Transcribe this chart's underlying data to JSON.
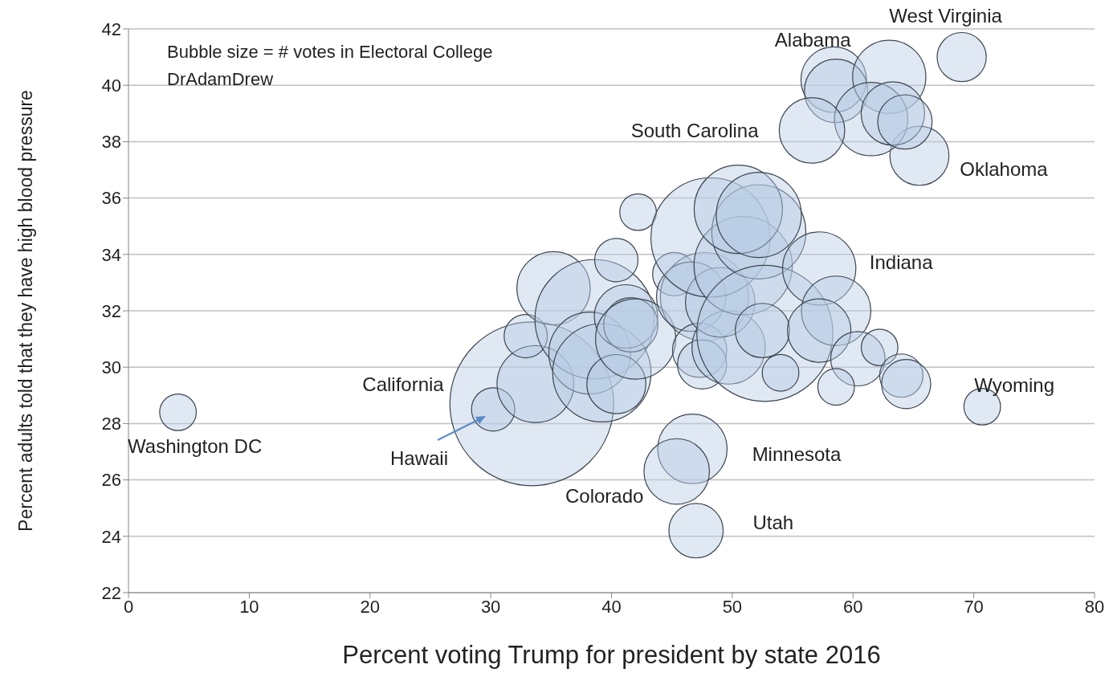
{
  "chart_data": {
    "type": "bubble",
    "xlabel": "Percent voting Trump for president by state  2016",
    "ylabel": "Percent adults told that they have high blood pressure",
    "x": [
      4.1,
      33.4,
      30.2,
      33.7,
      32.9,
      35.2,
      38.6,
      38.2,
      39.2,
      40.4,
      42.2,
      40.4,
      41.2,
      41.6,
      42.0,
      45.2,
      47.7,
      46.6,
      47.3,
      47.5,
      49.7,
      49.0,
      48.2,
      50.9,
      52.2,
      50.5,
      52.2,
      52.7,
      52.5,
      54.0,
      57.2,
      58.6,
      57.2,
      60.4,
      62.2,
      64.0,
      64.4,
      58.6,
      70.7,
      46.7,
      45.4,
      47.0,
      69.0,
      65.5,
      58.4,
      58.6,
      63.0,
      61.5,
      63.3,
      64.3,
      56.6
    ],
    "values": [
      28.4,
      28.7,
      28.5,
      29.4,
      31.1,
      32.8,
      31.7,
      30.5,
      29.8,
      29.4,
      35.5,
      33.8,
      31.8,
      31.5,
      31.0,
      33.3,
      32.5,
      32.5,
      30.6,
      30.1,
      30.7,
      32.3,
      34.6,
      33.6,
      34.8,
      35.6,
      35.4,
      31.2,
      31.3,
      29.8,
      33.5,
      32.0,
      31.3,
      30.3,
      30.7,
      29.7,
      29.4,
      29.3,
      28.6,
      27.1,
      26.3,
      24.2,
      41.0,
      37.5,
      40.2,
      39.8,
      40.3,
      38.8,
      39.0,
      38.7,
      38.4
    ],
    "sizes": [
      0.05,
      1,
      0.07,
      0.22,
      0.07,
      0.2,
      0.53,
      0.25,
      0.36,
      0.13,
      0.05,
      0.07,
      0.15,
      0.11,
      0.24,
      0.07,
      0.29,
      0.18,
      0.11,
      0.09,
      0.2,
      0.18,
      0.53,
      0.36,
      0.33,
      0.29,
      0.27,
      0.69,
      0.11,
      0.05,
      0.2,
      0.18,
      0.15,
      0.11,
      0.05,
      0.07,
      0.09,
      0.05,
      0.05,
      0.18,
      0.16,
      0.11,
      0.09,
      0.13,
      0.16,
      0.15,
      0.2,
      0.2,
      0.15,
      0.11,
      0.16
    ],
    "color": "#b8cce4",
    "xlim": [
      0,
      80
    ],
    "xticks": [
      0,
      10,
      20,
      30,
      40,
      50,
      60,
      70,
      80
    ],
    "ylim": [
      22,
      42
    ],
    "yticks": [
      22,
      24,
      26,
      28,
      30,
      32,
      34,
      36,
      38,
      40,
      42
    ],
    "grid": "y",
    "annotations": [
      "Bubble size = # votes in Electoral College",
      "DrAdamDrew",
      {
        "text": "West Virginia",
        "x": 69.0,
        "y": 41.0
      },
      {
        "text": "Alabama",
        "x": 58.4,
        "y": 40.2
      },
      {
        "text": "South Carolina",
        "x": 56.6,
        "y": 38.4
      },
      {
        "text": "Oklahoma",
        "x": 65.5,
        "y": 37.5
      },
      {
        "text": "Indiana",
        "x": 57.2,
        "y": 33.5
      },
      {
        "text": "Wyoming",
        "x": 70.7,
        "y": 28.6
      },
      "California",
      {
        "text": "Washington DC",
        "x": 4.1,
        "y": 28.4
      },
      "Hawaii",
      "Minnesota",
      {
        "text": "Colorado",
        "x": 45.4,
        "y": 26.3
      },
      {
        "text": "Utah",
        "x": 47.0,
        "y": 24.2
      }
    ]
  }
}
